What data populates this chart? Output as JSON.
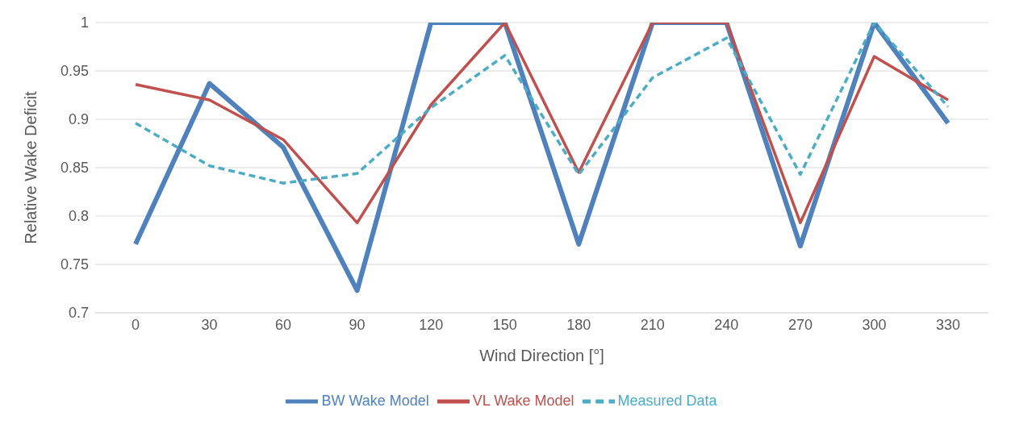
{
  "chart_data": {
    "type": "line",
    "xlabel": "Wind Direction [°]",
    "ylabel": "Relative Wake Deficit",
    "categories": [
      "0",
      "30",
      "60",
      "90",
      "120",
      "150",
      "180",
      "210",
      "240",
      "270",
      "300",
      "330"
    ],
    "series": [
      {
        "name": "BW Wake Model",
        "color": "#4f81bd",
        "line_style": "solid",
        "values": [
          0.771,
          0.937,
          0.871,
          0.723,
          1,
          1,
          0.771,
          1,
          1,
          0.769,
          1,
          0.896
        ]
      },
      {
        "name": "VL Wake Model",
        "color": "#c0504d",
        "line_style": "solid",
        "values": [
          0.936,
          0.92,
          0.879,
          0.793,
          0.915,
          1,
          0.845,
          1,
          1,
          0.793,
          0.965,
          0.92
        ]
      },
      {
        "name": "Measured Data",
        "color": "#4bacc6",
        "line_style": "dashed",
        "values": [
          0.896,
          0.852,
          0.834,
          0.844,
          0.912,
          0.966,
          0.843,
          0.943,
          0.984,
          0.843,
          1,
          0.913
        ]
      }
    ],
    "ylim": [
      0.7,
      1
    ],
    "yticks": [
      0.7,
      0.75,
      0.8,
      0.85,
      0.9,
      0.95,
      1
    ],
    "grid": "y",
    "legend": "bottom",
    "marker": "none"
  }
}
